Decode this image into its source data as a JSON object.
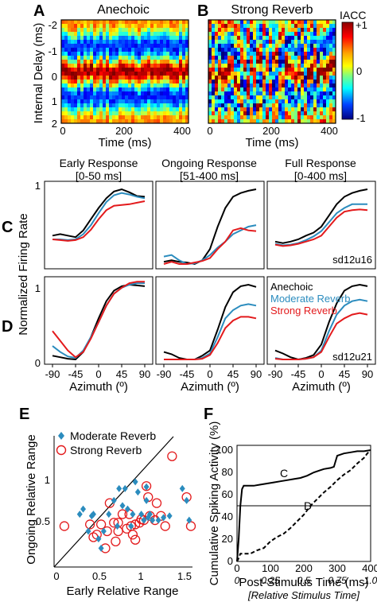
{
  "panels": {
    "A": {
      "letter": "A",
      "title": "Anechoic"
    },
    "B": {
      "letter": "B",
      "title": "Strong Reverb"
    },
    "C": {
      "letter": "C"
    },
    "D": {
      "letter": "D"
    },
    "E": {
      "letter": "E"
    },
    "F": {
      "letter": "F"
    }
  },
  "heatmap": {
    "ylabel": "Internal Delay (ms)",
    "xlabel": "Time (ms)",
    "yticks": [
      "-2",
      "-1",
      "0",
      "1",
      "2"
    ],
    "xticks": [
      "0",
      "200",
      "400"
    ],
    "colorbar": {
      "label": "IACC",
      "top": "+1",
      "mid": "0",
      "bottom": "-1"
    }
  },
  "rate": {
    "columns": [
      {
        "title1": "Early Response",
        "title2": "[0-50 ms]"
      },
      {
        "title1": "Ongoing Response",
        "title2": "[51-400 ms]"
      },
      {
        "title1": "Full Response",
        "title2": "[0-400 ms]"
      }
    ],
    "ylabel": "Normalized Firing Rate",
    "xlabel": "Azimuth (º)",
    "xticks": [
      "-90",
      "-45",
      "0",
      "45",
      "90"
    ],
    "y_one": "1",
    "y_zero": "0",
    "unit_c": "sd12u16",
    "unit_d": "sd12u21",
    "legend": [
      "Anechoic",
      "Moderate Reverb",
      "Strong Reverb"
    ]
  },
  "scatter": {
    "xlabel": "Early Relative Range",
    "ylabel": "Ongoing Relative Range",
    "xticks": [
      "0",
      "0.5",
      "1",
      "1.5"
    ],
    "yticks": [
      "0.5",
      "1"
    ],
    "legend": [
      "Moderate Reverb",
      "Strong Reverb"
    ]
  },
  "cumulative": {
    "ylabel": "Cumulative Spiking Activity (%)",
    "xlabel": "Post-Stimulus Time (ms)",
    "xlabel2": "[Relative Stimulus Time]",
    "xticks": [
      "0",
      "100",
      "200",
      "300",
      "400"
    ],
    "xticks2": [
      "0",
      "0.25",
      "0.5",
      "0.75",
      "1.0"
    ],
    "yticks": [
      "0",
      "20",
      "40",
      "60",
      "80",
      "100"
    ],
    "label_c": "C",
    "label_d": "D"
  },
  "colors": {
    "anechoic": "#000000",
    "moderate": "#2b8cbe",
    "strong": "#e31a1c"
  },
  "chart_data": [
    {
      "type": "heatmap",
      "title": "Anechoic",
      "xlabel": "Time (ms)",
      "ylabel": "Internal Delay (ms)",
      "xlim": [
        0,
        410
      ],
      "ylim": [
        -2,
        2
      ],
      "crange": [
        -1,
        1
      ]
    },
    {
      "type": "heatmap",
      "title": "Strong Reverb",
      "xlabel": "Time (ms)",
      "xlim": [
        0,
        410
      ],
      "ylim": [
        -2,
        2
      ],
      "crange": [
        -1,
        1
      ]
    },
    {
      "type": "line",
      "panel": "C",
      "xlabel": "Azimuth (º)",
      "ylabel": "Normalized Firing Rate",
      "xlim": [
        -100,
        100
      ],
      "ylim": [
        0,
        1
      ],
      "x": [
        -90,
        -75,
        -60,
        -45,
        -30,
        -15,
        0,
        15,
        30,
        45,
        60,
        75,
        90
      ],
      "subplots": [
        {
          "title": "Early Response [0-50 ms]",
          "series": [
            {
              "name": "Anechoic",
              "values": [
                0.38,
                0.4,
                0.38,
                0.36,
                0.45,
                0.6,
                0.75,
                0.88,
                0.97,
                1.0,
                0.96,
                0.91,
                0.9
              ]
            },
            {
              "name": "Moderate Reverb",
              "values": [
                0.33,
                0.33,
                0.32,
                0.33,
                0.4,
                0.52,
                0.68,
                0.83,
                0.92,
                0.95,
                0.93,
                0.9,
                0.88
              ]
            },
            {
              "name": "Strong Reverb",
              "values": [
                0.33,
                0.32,
                0.31,
                0.32,
                0.36,
                0.46,
                0.6,
                0.72,
                0.78,
                0.79,
                0.8,
                0.82,
                0.84
              ]
            }
          ]
        },
        {
          "title": "Ongoing Response [51-400 ms]",
          "series": [
            {
              "name": "Anechoic",
              "values": [
                0.03,
                0.05,
                0.03,
                0.02,
                0.0,
                0.05,
                0.2,
                0.5,
                0.75,
                0.9,
                0.95,
                0.98,
                1.0
              ]
            },
            {
              "name": "Moderate Reverb",
              "values": [
                0.1,
                0.12,
                0.05,
                0.0,
                0.01,
                0.05,
                0.12,
                0.22,
                0.3,
                0.4,
                0.45,
                0.5,
                0.52
              ]
            },
            {
              "name": "Strong Reverb",
              "values": [
                0.0,
                0.03,
                0.0,
                0.0,
                0.02,
                0.04,
                0.08,
                0.2,
                0.3,
                0.45,
                0.48,
                0.45,
                0.44
              ]
            }
          ]
        },
        {
          "title": "Full Response [0-400 ms]",
          "series": [
            {
              "name": "Anechoic",
              "values": [
                0.3,
                0.28,
                0.3,
                0.33,
                0.38,
                0.42,
                0.5,
                0.65,
                0.8,
                0.9,
                0.95,
                0.98,
                1.0
              ]
            },
            {
              "name": "Moderate Reverb",
              "values": [
                0.27,
                0.25,
                0.26,
                0.28,
                0.32,
                0.37,
                0.44,
                0.56,
                0.68,
                0.75,
                0.8,
                0.8,
                0.8
              ]
            },
            {
              "name": "Strong Reverb",
              "values": [
                0.26,
                0.24,
                0.25,
                0.27,
                0.3,
                0.33,
                0.38,
                0.5,
                0.62,
                0.7,
                0.72,
                0.73,
                0.72
              ]
            }
          ]
        }
      ]
    },
    {
      "type": "line",
      "panel": "D",
      "xlabel": "Azimuth (º)",
      "ylabel": "Normalized Firing Rate",
      "xlim": [
        -100,
        100
      ],
      "ylim": [
        0,
        1
      ],
      "x": [
        -90,
        -75,
        -60,
        -45,
        -30,
        -15,
        0,
        15,
        30,
        45,
        60,
        75,
        90
      ],
      "subplots": [
        {
          "title": "Early Response [0-50 ms]",
          "series": [
            {
              "name": "Anechoic",
              "values": [
                0.05,
                0.03,
                0.01,
                0.0,
                0.1,
                0.3,
                0.55,
                0.78,
                0.92,
                0.98,
                1.0,
                0.99,
                0.98
              ]
            },
            {
              "name": "Moderate Reverb",
              "values": [
                0.18,
                0.1,
                0.04,
                0.02,
                0.12,
                0.3,
                0.5,
                0.72,
                0.88,
                0.96,
                1.0,
                1.02,
                1.02
              ]
            },
            {
              "name": "Strong Reverb",
              "values": [
                0.38,
                0.25,
                0.12,
                0.03,
                0.1,
                0.28,
                0.5,
                0.72,
                0.88,
                0.96,
                1.02,
                1.04,
                1.04
              ]
            }
          ]
        },
        {
          "title": "Ongoing Response [51-400 ms]",
          "series": [
            {
              "name": "Anechoic",
              "values": [
                0.1,
                0.07,
                0.02,
                0.0,
                0.0,
                0.05,
                0.12,
                0.4,
                0.7,
                0.9,
                0.98,
                1.0,
                0.97
              ]
            },
            {
              "name": "Moderate Reverb",
              "values": [
                0.0,
                0.0,
                0.0,
                0.0,
                0.0,
                0.02,
                0.08,
                0.3,
                0.55,
                0.66,
                0.72,
                0.74,
                0.72
              ]
            },
            {
              "name": "Strong Reverb",
              "values": [
                0.0,
                0.0,
                0.0,
                0.0,
                0.0,
                0.01,
                0.06,
                0.22,
                0.42,
                0.52,
                0.57,
                0.57,
                0.55
              ]
            }
          ]
        },
        {
          "title": "Full Response [0-400 ms]",
          "series": [
            {
              "name": "Anechoic",
              "values": [
                0.12,
                0.08,
                0.03,
                0.0,
                0.02,
                0.06,
                0.2,
                0.5,
                0.75,
                0.92,
                0.98,
                1.0,
                0.98
              ]
            },
            {
              "name": "Moderate Reverb",
              "values": [
                0.02,
                0.0,
                0.0,
                0.0,
                0.01,
                0.03,
                0.12,
                0.38,
                0.6,
                0.72,
                0.78,
                0.8,
                0.78
              ]
            },
            {
              "name": "Strong Reverb",
              "values": [
                0.01,
                0.0,
                0.0,
                0.0,
                0.01,
                0.03,
                0.1,
                0.3,
                0.48,
                0.55,
                0.6,
                0.62,
                0.6
              ]
            }
          ]
        }
      ]
    },
    {
      "type": "scatter",
      "panel": "E",
      "xlabel": "Early Relative Range",
      "ylabel": "Ongoing Relative Range",
      "xlim": [
        0,
        1.6
      ],
      "ylim": [
        0,
        1.4
      ],
      "series": [
        {
          "name": "Moderate Reverb",
          "points": [
            [
              0.3,
              0.62
            ],
            [
              0.34,
              0.68
            ],
            [
              0.4,
              0.42
            ],
            [
              0.44,
              0.6
            ],
            [
              0.46,
              0.62
            ],
            [
              0.52,
              0.33
            ],
            [
              0.55,
              0.22
            ],
            [
              0.58,
              0.42
            ],
            [
              0.64,
              0.62
            ],
            [
              0.7,
              0.78
            ],
            [
              0.76,
              0.92
            ],
            [
              0.8,
              0.72
            ],
            [
              0.83,
              0.92
            ],
            [
              0.86,
              0.68
            ],
            [
              0.9,
              0.48
            ],
            [
              0.92,
              0.62
            ],
            [
              0.95,
              1.0
            ],
            [
              0.98,
              0.88
            ],
            [
              1.02,
              0.62
            ],
            [
              1.05,
              0.55
            ],
            [
              1.08,
              0.78
            ],
            [
              1.1,
              0.58
            ],
            [
              1.12,
              0.62
            ],
            [
              1.15,
              0.55
            ],
            [
              1.22,
              0.55
            ],
            [
              1.28,
              0.58
            ],
            [
              1.35,
              0.6
            ],
            [
              1.5,
              0.92
            ],
            [
              1.55,
              0.78
            ],
            [
              1.58,
              0.55
            ],
            [
              1.08,
              0.94
            ],
            [
              0.74,
              0.48
            ]
          ]
        },
        {
          "name": "Strong Reverb",
          "points": [
            [
              0.12,
              0.48
            ],
            [
              0.42,
              0.5
            ],
            [
              0.46,
              0.35
            ],
            [
              0.5,
              0.38
            ],
            [
              0.55,
              0.5
            ],
            [
              0.6,
              0.22
            ],
            [
              0.62,
              0.42
            ],
            [
              0.65,
              0.75
            ],
            [
              0.7,
              0.52
            ],
            [
              0.72,
              0.3
            ],
            [
              0.75,
              0.42
            ],
            [
              0.8,
              0.62
            ],
            [
              0.85,
              0.45
            ],
            [
              0.88,
              0.62
            ],
            [
              0.9,
              0.48
            ],
            [
              0.92,
              0.38
            ],
            [
              0.95,
              0.5
            ],
            [
              1.0,
              0.52
            ],
            [
              1.02,
              0.56
            ],
            [
              1.05,
              0.55
            ],
            [
              1.08,
              0.95
            ],
            [
              1.1,
              0.82
            ],
            [
              1.12,
              0.6
            ],
            [
              1.18,
              0.55
            ],
            [
              1.2,
              0.75
            ],
            [
              1.25,
              0.6
            ],
            [
              1.3,
              0.48
            ],
            [
              1.38,
              1.3
            ],
            [
              1.55,
              0.82
            ],
            [
              1.6,
              0.48
            ],
            [
              0.95,
              0.32
            ],
            [
              0.75,
              0.52
            ]
          ]
        }
      ],
      "reference_line": "identity"
    },
    {
      "type": "line",
      "panel": "F",
      "xlabel": "Post-Stimulus Time (ms)",
      "ylabel": "Cumulative Spiking Activity (%)",
      "xlim": [
        0,
        400
      ],
      "ylim": [
        0,
        100
      ],
      "horizontal_line": 50,
      "series": [
        {
          "name": "C",
          "x": [
            0,
            5,
            10,
            15,
            20,
            30,
            50,
            70,
            90,
            110,
            130,
            150,
            170,
            190,
            210,
            230,
            250,
            260,
            280,
            290,
            300,
            320,
            340,
            360,
            380,
            400
          ],
          "values": [
            0,
            20,
            50,
            65,
            68,
            68,
            68,
            69,
            70,
            71,
            72,
            73,
            74,
            75,
            77,
            80,
            82,
            83,
            84,
            85,
            95,
            97,
            98,
            99,
            99,
            100
          ]
        },
        {
          "name": "D",
          "x": [
            0,
            5,
            10,
            20,
            40,
            60,
            80,
            100,
            120,
            140,
            160,
            180,
            200,
            220,
            240,
            260,
            280,
            300,
            320,
            340,
            360,
            380,
            390,
            400
          ],
          "values": [
            0,
            3,
            7,
            7,
            7,
            10,
            12,
            18,
            22,
            25,
            30,
            36,
            42,
            50,
            56,
            62,
            67,
            73,
            78,
            82,
            88,
            93,
            97,
            100
          ]
        }
      ]
    }
  ]
}
